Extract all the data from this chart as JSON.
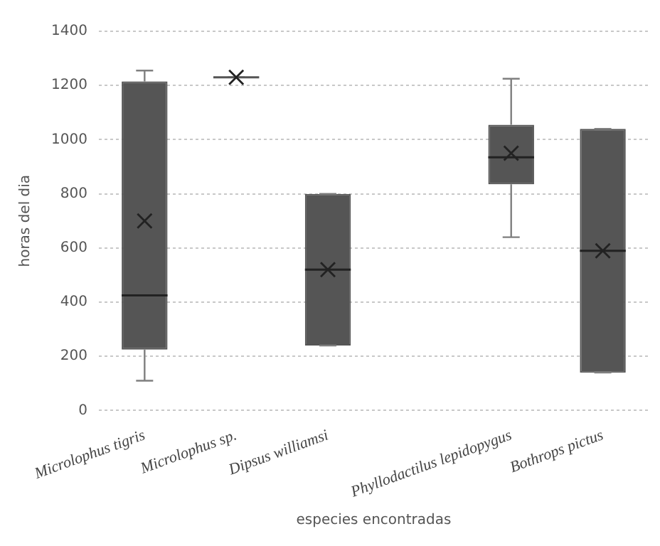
{
  "chart_data": {
    "type": "box",
    "xlabel": "especies encontradas",
    "ylabel": "horas del dia",
    "categories": [
      "Microlophus tigris",
      "Microlophus sp.",
      "Dipsus williamsi",
      null,
      "Phyllodactilus lepidopygus",
      "Bothrops pictus"
    ],
    "boxes": [
      {
        "low": 110,
        "q1": 225,
        "median": 425,
        "q3": 1215,
        "high": 1255,
        "mean": 700
      },
      {
        "low": 1230,
        "q1": 1230,
        "median": 1230,
        "q3": 1230,
        "high": 1230,
        "mean": 1230
      },
      {
        "low": 240,
        "q1": 240,
        "median": 520,
        "q3": 800,
        "high": 800,
        "mean": 520
      },
      null,
      {
        "low": 640,
        "q1": 835,
        "median": 935,
        "q3": 1055,
        "high": 1225,
        "mean": 950
      },
      {
        "low": 140,
        "q1": 140,
        "median": 590,
        "q3": 1040,
        "high": 1040,
        "mean": 590
      }
    ],
    "color": "#555555",
    "ylim": [
      0,
      1400
    ],
    "yticks": [
      0,
      200,
      400,
      600,
      800,
      1000,
      1200,
      1400
    ],
    "grid": "y",
    "marker": "cross"
  }
}
